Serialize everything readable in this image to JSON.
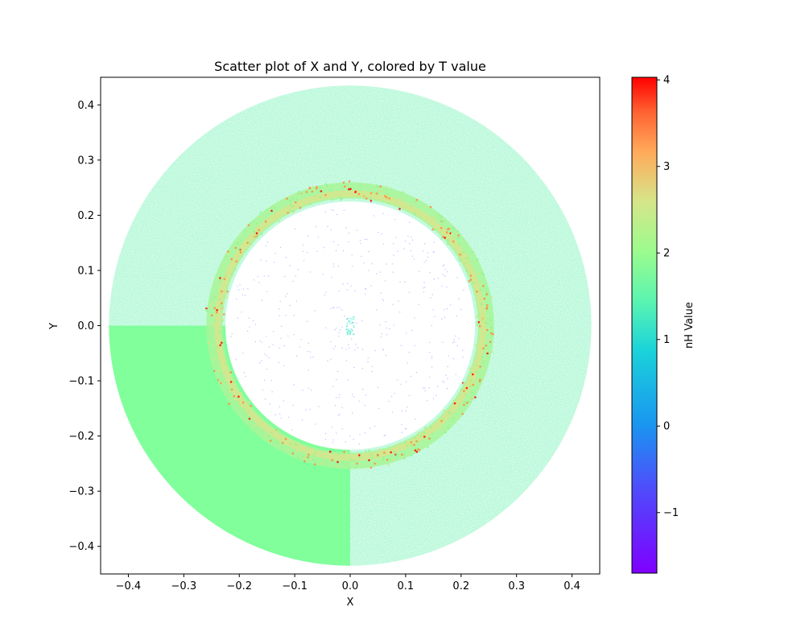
{
  "chart_data": {
    "type": "scatter",
    "title": "Scatter plot of X and Y, colored by T value",
    "xlabel": "X",
    "ylabel": "Y",
    "xlim": [
      -0.45,
      0.45
    ],
    "ylim": [
      -0.45,
      0.45
    ],
    "x_ticks": [
      -0.4,
      -0.3,
      -0.2,
      -0.1,
      0.0,
      0.1,
      0.2,
      0.3,
      0.4
    ],
    "y_ticks": [
      -0.4,
      -0.3,
      -0.2,
      -0.1,
      0.0,
      0.1,
      0.2,
      0.3,
      0.4
    ],
    "x_tick_labels": [
      "−0.4",
      "−0.3",
      "−0.2",
      "−0.1",
      "0.0",
      "0.1",
      "0.2",
      "0.3",
      "0.4"
    ],
    "y_tick_labels": [
      "−0.4",
      "−0.3",
      "−0.2",
      "−0.1",
      "0.0",
      "0.1",
      "0.2",
      "0.3",
      "0.4"
    ],
    "grid": false,
    "colormap": "rainbow",
    "colorbar": {
      "label": "nH Value",
      "range": [
        -1.7,
        4.03
      ],
      "ticks": [
        -1,
        0,
        1,
        2,
        3,
        4
      ],
      "tick_labels": [
        "−1",
        "0",
        "1",
        "2",
        "3",
        "4"
      ]
    },
    "regions": [
      {
        "kind": "disk",
        "outer_radius": 0.435,
        "value": 1.0,
        "description_visible": false
      },
      {
        "kind": "quadrant",
        "x_range": [
          -0.435,
          0.0
        ],
        "y_range": [
          -0.435,
          0.0
        ],
        "value": 1.05
      },
      {
        "kind": "shell",
        "radius": 0.245,
        "width": 0.03,
        "value_range": [
          1.5,
          3.5
        ]
      },
      {
        "kind": "inner_cavity",
        "radius": 0.225,
        "value": -1.0
      }
    ]
  },
  "palette": {
    "low": "#7f00ff",
    "mid_low": "#2a8cf0",
    "mid": "#2ee6c8",
    "mid_high": "#80ff9b",
    "high_mid": "#d6e58a",
    "high": "#ff8c3a",
    "max": "#ff0000"
  }
}
